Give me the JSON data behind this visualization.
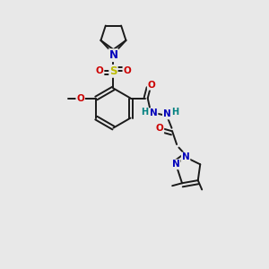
{
  "bg_color": "#e8e8e8",
  "bond_color": "#1a1a1a",
  "atom_colors": {
    "N": "#0000bb",
    "O": "#cc0000",
    "S": "#bbbb00",
    "C": "#1a1a1a",
    "H": "#008080"
  },
  "lw": 1.4
}
